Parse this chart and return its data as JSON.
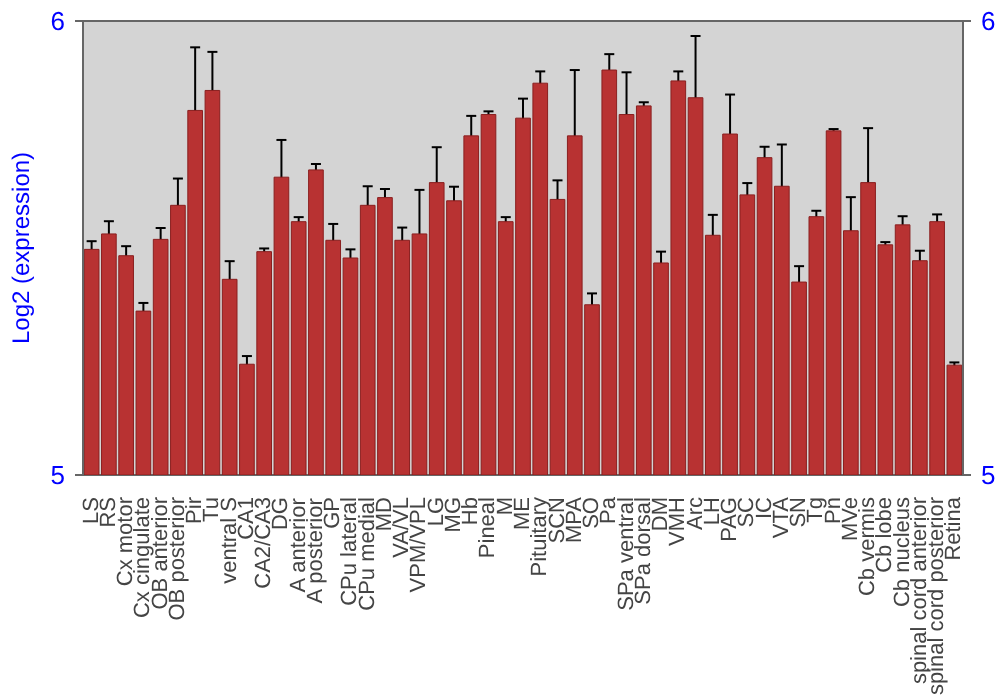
{
  "chart_data": {
    "type": "bar",
    "ylabel": "Log2 (expression)",
    "categories": [
      "LS",
      "RS",
      "Cx motor",
      "Cx cingulate",
      "OB anterior",
      "OB posterior",
      "Pir",
      "Tu",
      "ventral S",
      "CA1",
      "CA2/CA3",
      "DG",
      "A anterior",
      "A posterior",
      "GP",
      "CPu lateral",
      "CPu medial",
      "MD",
      "VA/VL",
      "VPM/VPL",
      "LG",
      "MG",
      "Hb",
      "Pineal",
      "M",
      "ME",
      "Pituitary",
      "SCN",
      "MPA",
      "SO",
      "Pa",
      "SPa ventral",
      "SPa dorsal",
      "DM",
      "VMH",
      "Arc",
      "LH",
      "PAG",
      "SC",
      "IC",
      "VTA",
      "SN",
      "Tg",
      "Pn",
      "MVe",
      "Cb vermis",
      "Cb lobe",
      "Cb nucleus",
      "spinal cord anterior",
      "spinal cord posterior",
      "Retina"
    ],
    "values": [
      5.497,
      5.531,
      5.483,
      5.361,
      5.519,
      5.594,
      5.803,
      5.847,
      5.431,
      5.244,
      5.492,
      5.656,
      5.558,
      5.672,
      5.517,
      5.478,
      5.594,
      5.611,
      5.517,
      5.531,
      5.644,
      5.604,
      5.747,
      5.794,
      5.558,
      5.786,
      5.863,
      5.607,
      5.747,
      5.375,
      5.892,
      5.794,
      5.813,
      5.467,
      5.868,
      5.831,
      5.528,
      5.751,
      5.617,
      5.699,
      5.636,
      5.425,
      5.569,
      5.758,
      5.538,
      5.644,
      5.507,
      5.551,
      5.472,
      5.558,
      5.242
    ],
    "errors": [
      0.018,
      0.028,
      0.021,
      0.018,
      0.025,
      0.059,
      0.139,
      0.085,
      0.04,
      0.018,
      0.007,
      0.082,
      0.01,
      0.013,
      0.036,
      0.019,
      0.042,
      0.019,
      0.028,
      0.097,
      0.078,
      0.031,
      0.044,
      0.007,
      0.01,
      0.043,
      0.026,
      0.042,
      0.145,
      0.025,
      0.035,
      0.093,
      0.008,
      0.025,
      0.021,
      0.136,
      0.045,
      0.087,
      0.026,
      0.024,
      0.092,
      0.035,
      0.013,
      0.004,
      0.074,
      0.12,
      0.006,
      0.019,
      0.022,
      0.016,
      0.006
    ],
    "color": "#b83232",
    "ylim": [
      5,
      6
    ],
    "yticks": [
      5,
      6
    ],
    "y2lim": [
      5,
      6
    ],
    "y2ticks": [
      5,
      6
    ],
    "grid": false
  }
}
